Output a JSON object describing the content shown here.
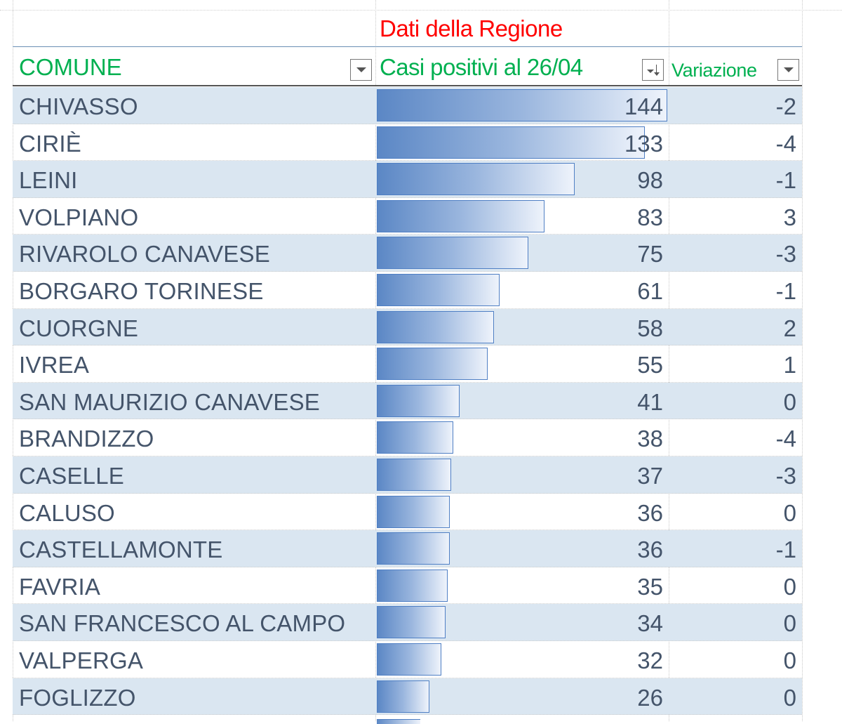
{
  "table": {
    "title": "Dati della Regione",
    "columns": [
      {
        "label": "COMUNE",
        "filter_icon": "filter-dropdown-icon"
      },
      {
        "label": "Casi positivi al 26/04",
        "filter_icon": "sort-descending-filter-icon"
      },
      {
        "label": "Variazione",
        "filter_icon": "filter-dropdown-icon"
      }
    ],
    "max_value": 144,
    "rows": [
      {
        "comune": "CHIVASSO",
        "casi": 144,
        "variazione": "-2"
      },
      {
        "comune": "CIRIÈ",
        "casi": 133,
        "variazione": "-4"
      },
      {
        "comune": "LEINI",
        "casi": 98,
        "variazione": "-1"
      },
      {
        "comune": "VOLPIANO",
        "casi": 83,
        "variazione": "3"
      },
      {
        "comune": "RIVAROLO CANAVESE",
        "casi": 75,
        "variazione": "-3"
      },
      {
        "comune": "BORGARO TORINESE",
        "casi": 61,
        "variazione": "-1"
      },
      {
        "comune": "CUORGNE",
        "casi": 58,
        "variazione": "2"
      },
      {
        "comune": "IVREA",
        "casi": 55,
        "variazione": "1"
      },
      {
        "comune": "SAN MAURIZIO CANAVESE",
        "casi": 41,
        "variazione": "0"
      },
      {
        "comune": "BRANDIZZO",
        "casi": 38,
        "variazione": "-4"
      },
      {
        "comune": "CASELLE",
        "casi": 37,
        "variazione": "-3"
      },
      {
        "comune": "CALUSO",
        "casi": 36,
        "variazione": "0"
      },
      {
        "comune": "CASTELLAMONTE",
        "casi": 36,
        "variazione": "-1"
      },
      {
        "comune": "FAVRIA",
        "casi": 35,
        "variazione": "0"
      },
      {
        "comune": "SAN FRANCESCO AL CAMPO",
        "casi": 34,
        "variazione": "0"
      },
      {
        "comune": "VALPERGA",
        "casi": 32,
        "variazione": "0"
      },
      {
        "comune": "FOGLIZZO",
        "casi": 26,
        "variazione": "0"
      }
    ]
  },
  "colors": {
    "title_text": "#ff0000",
    "header_text": "#00b050",
    "cell_text": "#44546a",
    "band_fill": "#dae6f1",
    "databar_border": "#4f7fc4",
    "databar_start": "#5b87c5"
  }
}
